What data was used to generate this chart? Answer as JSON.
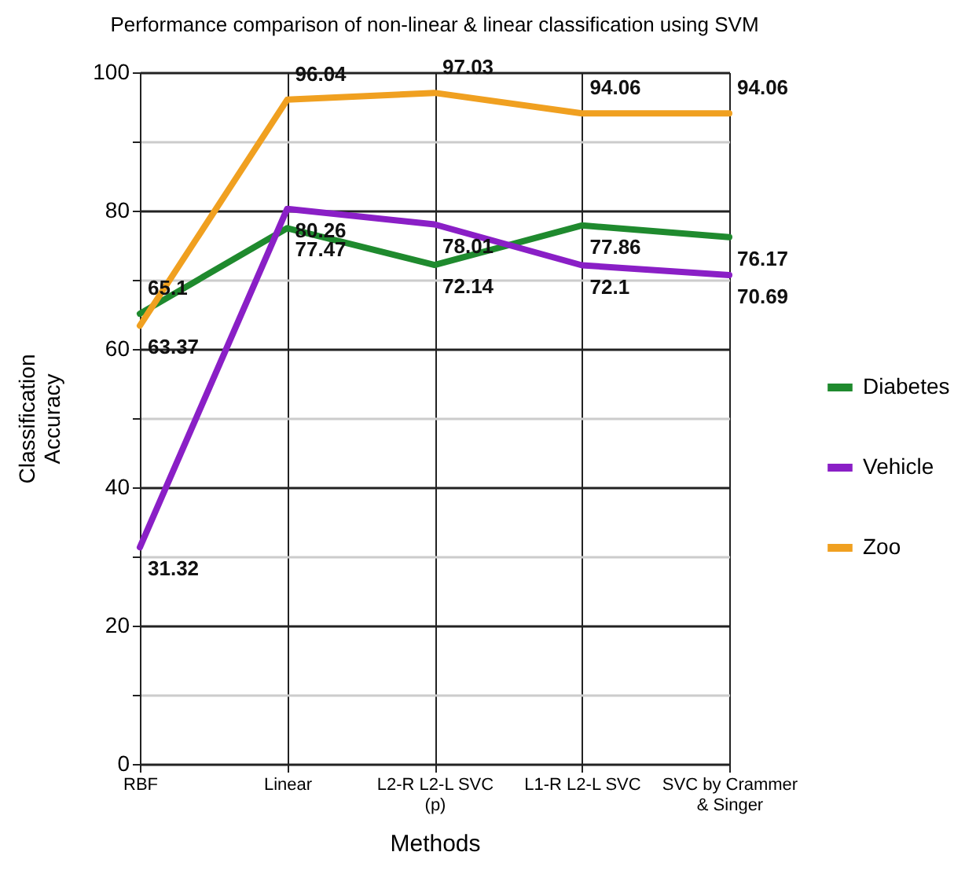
{
  "chart_data": {
    "type": "line",
    "title": "Performance comparison of non-linear & linear classification using SVM",
    "xlabel": "Methods",
    "ylabel": "Classification Accuracy",
    "categories": [
      "RBF",
      "Linear",
      "L2-R L2-L SVC (p)",
      "L1-R L2-L SVC",
      "SVC by Crammer & Singer"
    ],
    "series": [
      {
        "name": "Diabetes",
        "color": "#1f8a2e",
        "values": [
          65.1,
          77.47,
          72.14,
          77.86,
          76.17
        ]
      },
      {
        "name": "Vehicle",
        "color": "#8a1fc6",
        "values": [
          31.32,
          80.26,
          78.01,
          72.1,
          70.69
        ]
      },
      {
        "name": "Zoo",
        "color": "#f0a020",
        "values": [
          63.37,
          96.04,
          97.03,
          94.06,
          94.06
        ]
      }
    ],
    "ylim": [
      0,
      100
    ],
    "yticks": [
      0,
      {
        "value": 10,
        "label": null
      },
      20,
      {
        "value": 30,
        "label": null
      },
      40,
      {
        "value": 50,
        "label": null
      },
      60,
      {
        "value": 70,
        "label": null
      },
      80,
      {
        "value": 90,
        "label": null
      },
      100
    ],
    "grid": true,
    "legend": "right",
    "data_labels": true
  }
}
